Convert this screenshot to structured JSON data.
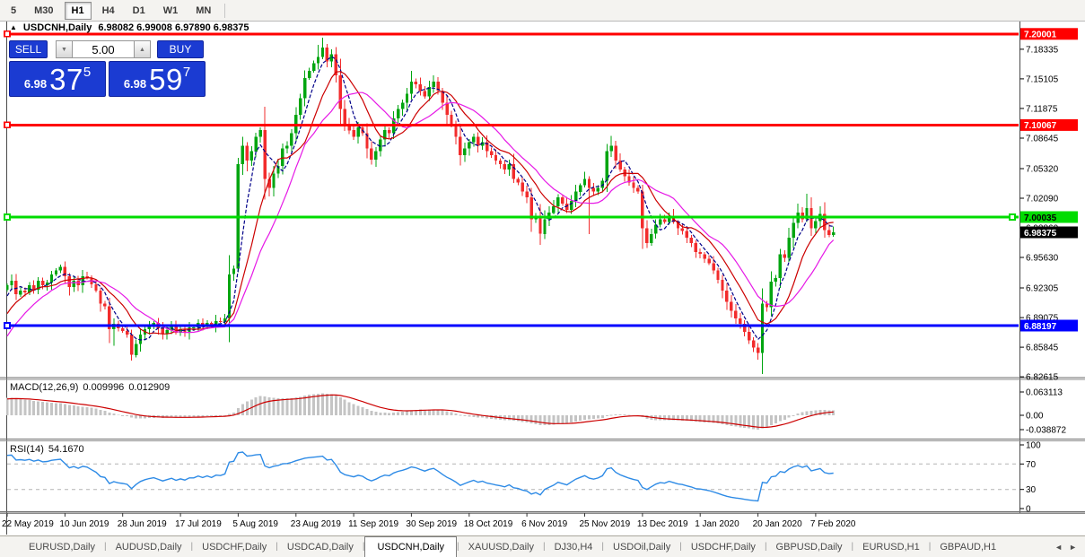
{
  "toolbar": {
    "timeframes": [
      {
        "label": "5",
        "active": false
      },
      {
        "label": "M30",
        "active": false
      },
      {
        "label": "H1",
        "active": true
      },
      {
        "label": "H4",
        "active": false
      },
      {
        "label": "D1",
        "active": false
      },
      {
        "label": "W1",
        "active": false
      },
      {
        "label": "MN",
        "active": false
      }
    ]
  },
  "title": {
    "symbol": "USDCNH,Daily",
    "ohlc": "6.98082 6.99008 6.97890 6.98375"
  },
  "icons": {
    "collapse": "▲",
    "spinner_down": "▼",
    "spinner_up": "▲",
    "tab_scroll_left": "◄",
    "tab_scroll_right": "►"
  },
  "trade_panel": {
    "sell_label": "SELL",
    "buy_label": "BUY",
    "lot": "5.00",
    "sell_price": {
      "prefix": "6.98",
      "big": "37",
      "sup": "5"
    },
    "buy_price": {
      "prefix": "6.98",
      "big": "59",
      "sup": "7"
    }
  },
  "indicators": {
    "macd": {
      "label": "MACD(12,26,9)",
      "value1": "0.009996",
      "value2": "0.012909",
      "axis_labels": [
        "0.063113",
        "0.00",
        "-0.038872"
      ],
      "axis_values": [
        0.063113,
        0,
        -0.038872
      ]
    },
    "rsi": {
      "label": "RSI(14)",
      "value": "54.1670",
      "axis_labels": [
        "100",
        "70",
        "30",
        "0"
      ],
      "axis_values": [
        100,
        70,
        30,
        0
      ],
      "levels": [
        70,
        30
      ]
    }
  },
  "price_axis": {
    "ticks": [
      {
        "value": 7.18335,
        "label": "7.18335"
      },
      {
        "value": 7.15105,
        "label": "7.15105"
      },
      {
        "value": 7.11875,
        "label": "7.11875"
      },
      {
        "value": 7.08645,
        "label": "7.08645"
      },
      {
        "value": 7.0532,
        "label": "7.05320"
      },
      {
        "value": 7.0209,
        "label": "7.02090"
      },
      {
        "value": 6.9886,
        "label": "6.98860"
      },
      {
        "value": 6.9563,
        "label": "6.95630"
      },
      {
        "value": 6.92305,
        "label": "6.92305"
      },
      {
        "value": 6.89075,
        "label": "6.89075"
      },
      {
        "value": 6.85845,
        "label": "6.85845"
      },
      {
        "value": 6.82615,
        "label": "6.82615"
      }
    ]
  },
  "tabs": {
    "items": [
      {
        "label": "EURUSD,Daily",
        "active": false
      },
      {
        "label": "AUDUSD,Daily",
        "active": false
      },
      {
        "label": "USDCHF,Daily",
        "active": false
      },
      {
        "label": "USDCAD,Daily",
        "active": false
      },
      {
        "label": "USDCNH,Daily",
        "active": true
      },
      {
        "label": "XAUUSD,Daily",
        "active": false
      },
      {
        "label": "DJ30,H4",
        "active": false
      },
      {
        "label": "USDOil,Daily",
        "active": false
      },
      {
        "label": "USDCHF,Daily",
        "active": false
      },
      {
        "label": "GBPUSD,Daily",
        "active": false
      },
      {
        "label": "EURUSD,H1",
        "active": false
      },
      {
        "label": "GBPAUD,H1",
        "active": false
      }
    ]
  },
  "chart_data": {
    "type": "candlestick",
    "symbol": "USDCNH",
    "period": "Daily",
    "current_bar": {
      "open": 6.98082,
      "high": 6.99008,
      "low": 6.9789,
      "close": 6.98375
    },
    "first_open": 6.921,
    "closes": [
      6.926,
      6.931,
      6.916,
      6.92,
      6.918,
      6.926,
      6.921,
      6.931,
      6.926,
      6.929,
      6.938,
      6.942,
      6.946,
      6.936,
      6.924,
      6.931,
      6.926,
      6.936,
      6.934,
      6.927,
      6.92,
      6.906,
      6.903,
      6.878,
      6.884,
      6.879,
      6.876,
      6.872,
      6.85,
      6.862,
      6.872,
      6.878,
      6.882,
      6.885,
      6.879,
      6.873,
      6.877,
      6.881,
      6.874,
      6.878,
      6.874,
      6.88,
      6.88,
      6.885,
      6.881,
      6.885,
      6.881,
      6.887,
      6.886,
      6.89,
      6.938,
      6.944,
      7.058,
      7.078,
      7.062,
      7.072,
      7.088,
      7.095,
      7.042,
      7.032,
      7.048,
      7.056,
      7.075,
      7.078,
      7.092,
      7.112,
      7.13,
      7.152,
      7.16,
      7.168,
      7.175,
      7.185,
      7.17,
      7.178,
      7.155,
      7.118,
      7.102,
      7.095,
      7.088,
      7.098,
      7.092,
      7.075,
      7.063,
      7.072,
      7.085,
      7.095,
      7.092,
      7.108,
      7.118,
      7.125,
      7.135,
      7.148,
      7.145,
      7.138,
      7.132,
      7.142,
      7.148,
      7.138,
      7.125,
      7.112,
      7.102,
      7.088,
      7.068,
      7.075,
      7.082,
      7.088,
      7.078,
      7.082,
      7.072,
      7.068,
      7.062,
      7.058,
      7.052,
      7.058,
      7.042,
      7.038,
      7.028,
      7.022,
      6.998,
      7.002,
      6.982,
      6.998,
      7.005,
      7.012,
      7.022,
      7.015,
      7.008,
      7.018,
      7.028,
      7.035,
      7.042,
      7.032,
      7.028,
      7.032,
      7.04,
      7.072,
      7.078,
      7.062,
      7.052,
      7.045,
      7.038,
      7.032,
      7.028,
      6.988,
      6.972,
      6.982,
      6.992,
      6.998,
      6.995,
      7.002,
      6.995,
      6.988,
      6.985,
      6.978,
      6.972,
      6.962,
      6.96,
      6.955,
      6.95,
      6.942,
      6.932,
      6.92,
      6.908,
      6.898,
      6.89,
      6.884,
      6.875,
      6.866,
      6.858,
      6.852,
      6.906,
      6.902,
      6.93,
      6.934,
      6.96,
      6.956,
      6.978,
      6.994,
      7.005,
      6.998,
      7.01,
      6.988,
      6.996,
      7.004,
      6.986,
      6.9808,
      6.9838
    ],
    "wick_overrides": {
      "24": {
        "l": 6.86
      },
      "28": {
        "l": 6.844
      },
      "52": {
        "l": 6.94,
        "h": 7.065
      },
      "70": {
        "h": 7.188
      },
      "71": {
        "h": 7.196
      },
      "91": {
        "h": 7.16
      },
      "96": {
        "h": 7.155
      },
      "118": {
        "l": 6.984
      },
      "120": {
        "l": 6.97
      },
      "131": {
        "l": 6.982
      },
      "135": {
        "h": 7.08
      },
      "136": {
        "h": 7.089
      },
      "169": {
        "l": 6.845
      },
      "178": {
        "h": 7.015
      },
      "180": {
        "h": 7.026
      },
      "183": {
        "h": 7.012
      },
      "186": {
        "h": 6.99008,
        "l": 6.9789
      }
    },
    "date_axis": {
      "labels": [
        "22 May 2019",
        "10 Jun 2019",
        "28 Jun 2019",
        "17 Jul 2019",
        "5 Aug 2019",
        "23 Aug 2019",
        "11 Sep 2019",
        "30 Sep 2019",
        "18 Oct 2019",
        "6 Nov 2019",
        "25 Nov 2019",
        "13 Dec 2019",
        "1 Jan 2020",
        "20 Jan 2020",
        "7 Feb 2020"
      ],
      "bar_interval": 13
    },
    "horizontal_lines": [
      {
        "price": 7.20001,
        "label": "7.20001",
        "color": "#FF0000",
        "label_text_color": "#FFFFFF",
        "thickness": 3
      },
      {
        "price": 7.10067,
        "label": "7.10067",
        "color": "#FF0000",
        "label_text_color": "#FFFFFF",
        "thickness": 3
      },
      {
        "price": 7.00035,
        "label": "7.00035",
        "color": "#00DC00",
        "label_text_color": "#000000",
        "thickness": 3,
        "right_handle": true
      },
      {
        "price": 6.88197,
        "label": "6.88197",
        "color": "#0000FF",
        "label_text_color": "#FFFFFF",
        "thickness": 3
      }
    ],
    "current_price_label": {
      "price": 6.98375,
      "label": "6.98375",
      "bg": "#000000",
      "text": "#FFFFFF"
    },
    "moving_averages": [
      {
        "period": 5,
        "color": "#000089",
        "dashed": true
      },
      {
        "period": 10,
        "color": "#CC0000",
        "dashed": false
      },
      {
        "period": 16,
        "color": "#E619E6",
        "dashed": false
      }
    ],
    "candle_colors": {
      "up": "#00A510",
      "down": "#F22C2C"
    },
    "macd": {
      "fast": 12,
      "slow": 26,
      "signal": 9,
      "histogram_color": "#C4C4C4",
      "signal_color": "#CC0000"
    },
    "rsi": {
      "period": 14,
      "color": "#2E8BE6",
      "level_color": "#B4B4B4"
    }
  }
}
